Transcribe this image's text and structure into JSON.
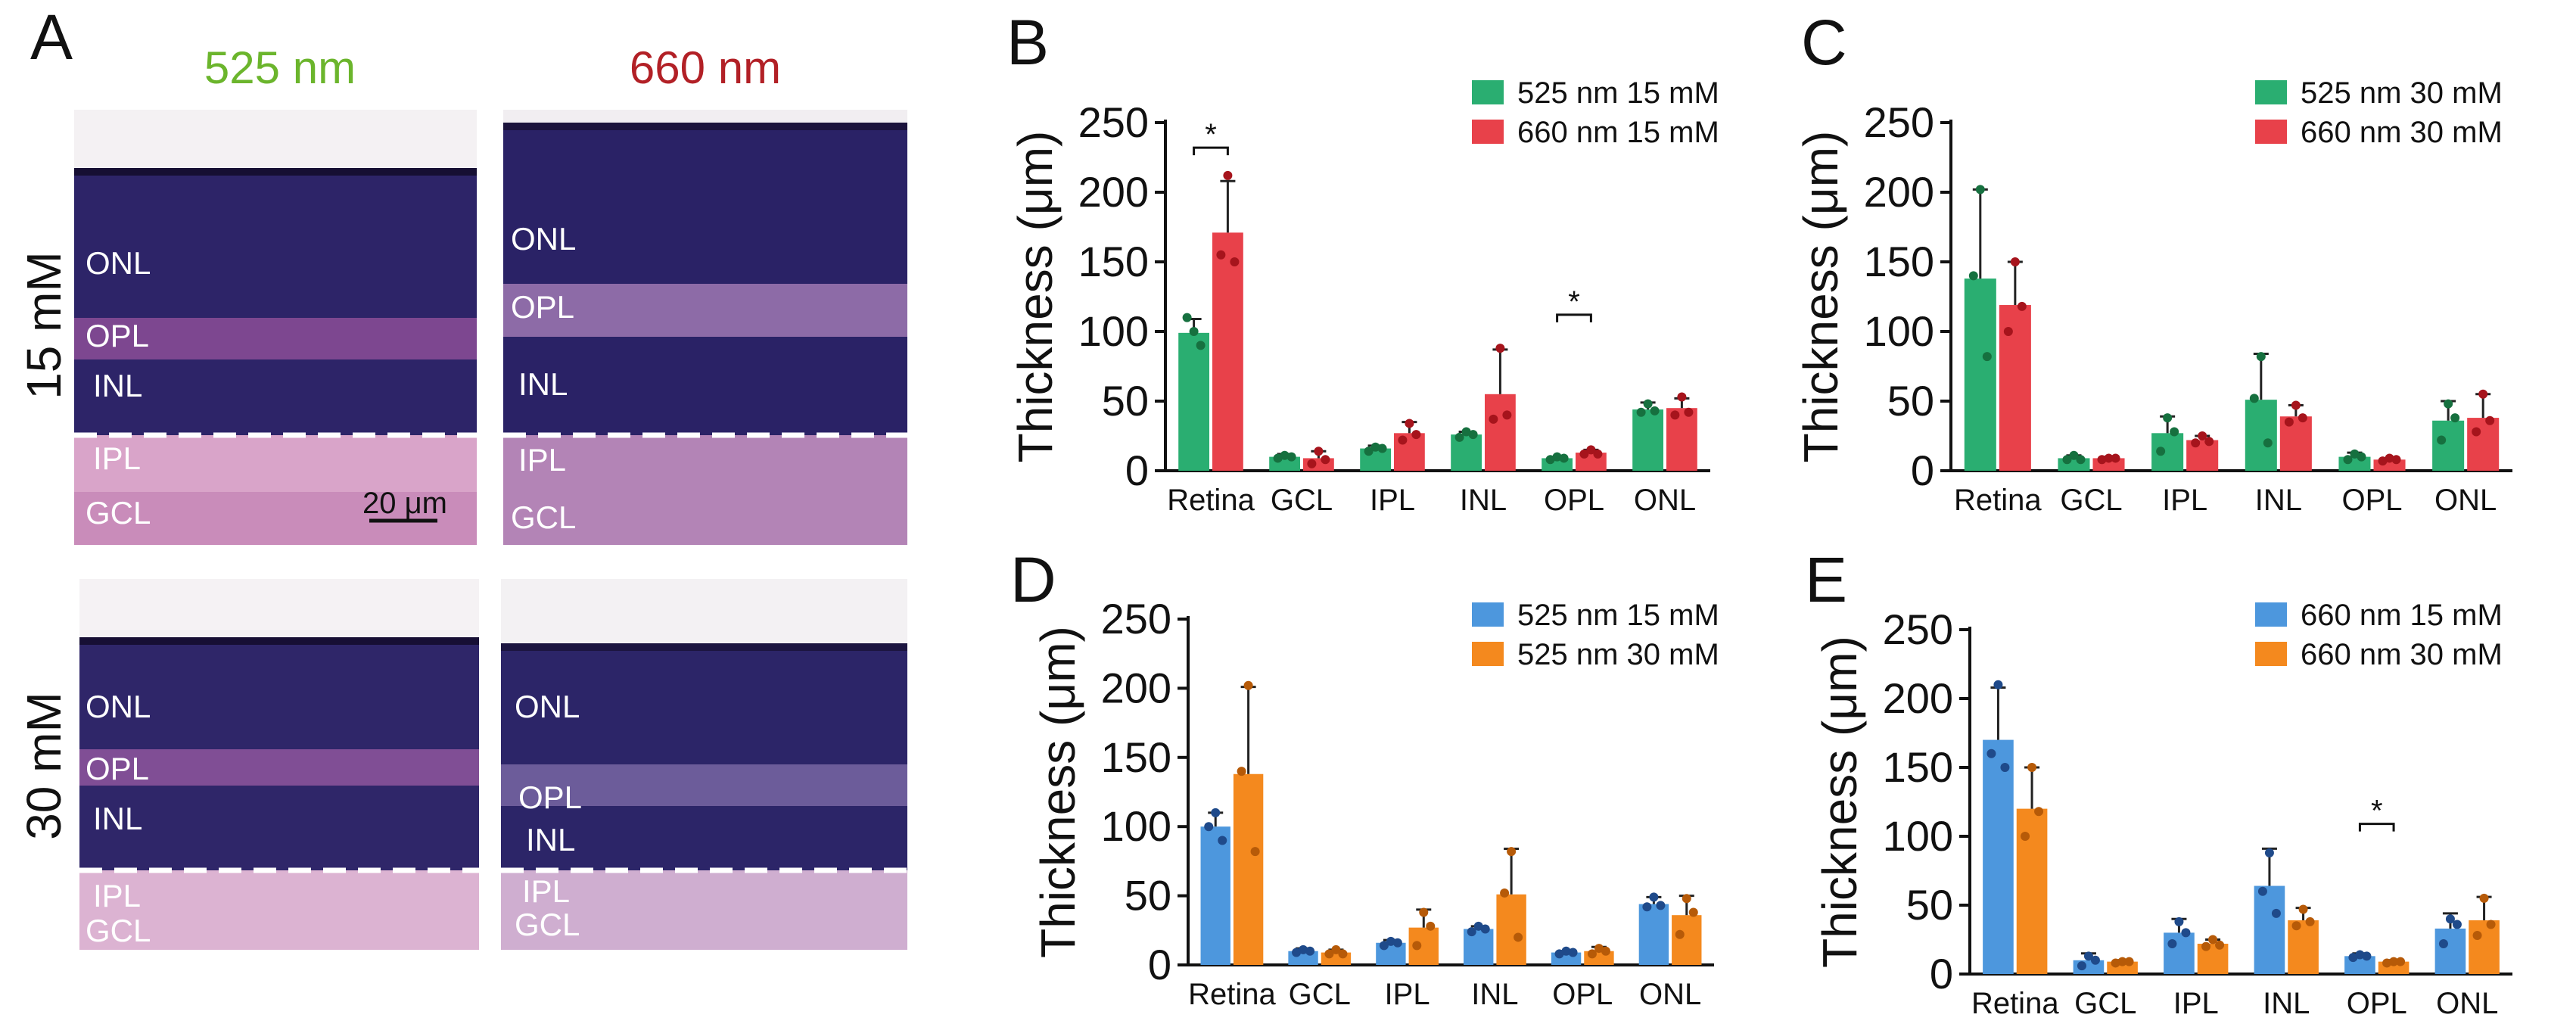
{
  "figure": {
    "panel_labels": [
      "A",
      "B",
      "C",
      "D",
      "E"
    ],
    "panel_a": {
      "col_labels": [
        "525 nm",
        "660 nm"
      ],
      "row_labels": [
        "15 mM",
        "30 mM"
      ],
      "layer_labels": [
        [
          "ONL",
          "OPL",
          "INL",
          "IPL",
          "GCL"
        ],
        [
          "ONL",
          "OPL",
          "INL",
          "IPL",
          "GCL"
        ],
        [
          "ONL",
          "OPL",
          "INL",
          "IPL",
          "GCL"
        ],
        [
          "ONL",
          "OPL",
          "INL",
          "IPL",
          "GCL"
        ]
      ],
      "scale_bar": "20 μm"
    }
  },
  "chart_data": [
    {
      "panel": "B",
      "type": "bar",
      "ylabel": "Thickness (μm)",
      "ylim": [
        0,
        250
      ],
      "yticks": [
        0,
        50,
        100,
        150,
        200,
        250
      ],
      "categories": [
        "Retina",
        "GCL",
        "IPL",
        "INL",
        "OPL",
        "ONL"
      ],
      "series": [
        {
          "name": "525 nm 15 mM",
          "color": "#2aae71",
          "dot": "#16703f",
          "values": [
            99,
            10,
            16,
            26,
            9,
            44
          ],
          "errors": [
            10,
            2,
            2,
            2,
            1,
            5
          ],
          "points": [
            [
              100,
              110,
              90
            ],
            [
              11,
              9,
              10
            ],
            [
              17,
              14,
              16
            ],
            [
              28,
              24,
              26
            ],
            [
              10,
              8,
              9
            ],
            [
              48,
              42,
              43
            ]
          ]
        },
        {
          "name": "660 nm 15 mM",
          "color": "#e8414a",
          "dot": "#a6141c",
          "values": [
            171,
            9,
            27,
            55,
            13,
            45
          ],
          "errors": [
            37,
            5,
            8,
            32,
            2,
            7
          ],
          "points": [
            [
              212,
              155,
              150
            ],
            [
              14,
              5,
              8
            ],
            [
              34,
              22,
              26
            ],
            [
              88,
              37,
              40
            ],
            [
              15,
              12,
              12
            ],
            [
              53,
              40,
              42
            ]
          ]
        }
      ],
      "annotations": [
        {
          "text": "*",
          "from": 0,
          "to": 0,
          "y": 232
        },
        {
          "text": "*",
          "from": 4,
          "to": 4,
          "y": 112
        }
      ],
      "legend": "top-right"
    },
    {
      "panel": "C",
      "type": "bar",
      "ylabel": "Thickness (μm)",
      "ylim": [
        0,
        250
      ],
      "yticks": [
        0,
        50,
        100,
        150,
        200,
        250
      ],
      "categories": [
        "Retina",
        "GCL",
        "IPL",
        "INL",
        "OPL",
        "ONL"
      ],
      "series": [
        {
          "name": "525 nm 30 mM",
          "color": "#2aae71",
          "dot": "#16703f",
          "values": [
            138,
            9,
            27,
            51,
            10,
            36
          ],
          "errors": [
            64,
            2,
            12,
            33,
            3,
            14
          ],
          "points": [
            [
              202,
              140,
              82
            ],
            [
              11,
              8,
              8
            ],
            [
              38,
              14,
              28
            ],
            [
              82,
              52,
              20
            ],
            [
              12,
              8,
              10
            ],
            [
              48,
              22,
              38
            ]
          ]
        },
        {
          "name": "660 nm 30 mM",
          "color": "#e8414a",
          "dot": "#a6141c",
          "values": [
            119,
            9,
            22,
            39,
            8,
            38
          ],
          "errors": [
            31,
            1,
            3,
            8,
            1,
            17
          ],
          "points": [
            [
              150,
              100,
              118
            ],
            [
              9,
              8,
              9
            ],
            [
              25,
              20,
              21
            ],
            [
              47,
              35,
              38
            ],
            [
              9,
              7,
              8
            ],
            [
              55,
              28,
              36
            ]
          ]
        }
      ],
      "annotations": [],
      "legend": "top-right"
    },
    {
      "panel": "D",
      "type": "bar",
      "ylabel": "Thickness (μm)",
      "ylim": [
        0,
        250
      ],
      "yticks": [
        0,
        50,
        100,
        150,
        200,
        250
      ],
      "categories": [
        "Retina",
        "GCL",
        "IPL",
        "INL",
        "OPL",
        "ONL"
      ],
      "series": [
        {
          "name": "525 nm 15 mM",
          "color": "#4d97dd",
          "dot": "#1f4a8a",
          "values": [
            100,
            10,
            16,
            26,
            9,
            44
          ],
          "errors": [
            10,
            2,
            2,
            2,
            1,
            5
          ],
          "points": [
            [
              110,
              100,
              90
            ],
            [
              11,
              9,
              10
            ],
            [
              17,
              14,
              16
            ],
            [
              28,
              24,
              26
            ],
            [
              10,
              8,
              9
            ],
            [
              49,
              42,
              43
            ]
          ]
        },
        {
          "name": "525 nm 30 mM",
          "color": "#f4891e",
          "dot": "#b65a08",
          "values": [
            138,
            9,
            27,
            51,
            10,
            36
          ],
          "errors": [
            63,
            2,
            13,
            33,
            3,
            14
          ],
          "points": [
            [
              202,
              140,
              82
            ],
            [
              11,
              8,
              8
            ],
            [
              38,
              14,
              28
            ],
            [
              82,
              52,
              20
            ],
            [
              12,
              8,
              10
            ],
            [
              48,
              22,
              38
            ]
          ]
        }
      ],
      "annotations": [],
      "legend": "top-right"
    },
    {
      "panel": "E",
      "type": "bar",
      "ylabel": "Thickness (μm)",
      "ylim": [
        0,
        250
      ],
      "yticks": [
        0,
        50,
        100,
        150,
        200,
        250
      ],
      "categories": [
        "Retina",
        "GCL",
        "IPL",
        "INL",
        "OPL",
        "ONL"
      ],
      "series": [
        {
          "name": "660 nm 15 mM",
          "color": "#4d97dd",
          "dot": "#1f4a8a",
          "values": [
            170,
            10,
            30,
            64,
            13,
            33
          ],
          "errors": [
            38,
            5,
            10,
            27,
            2,
            11
          ],
          "points": [
            [
              210,
              160,
              150
            ],
            [
              13,
              6,
              10
            ],
            [
              38,
              22,
              30
            ],
            [
              88,
              60,
              44
            ],
            [
              14,
              12,
              13
            ],
            [
              40,
              22,
              36
            ]
          ]
        },
        {
          "name": "660 nm 30 mM",
          "color": "#f4891e",
          "dot": "#b65a08",
          "values": [
            120,
            9,
            22,
            39,
            9,
            39
          ],
          "errors": [
            30,
            1,
            3,
            9,
            1,
            17
          ],
          "points": [
            [
              150,
              100,
              118
            ],
            [
              9,
              8,
              9
            ],
            [
              25,
              20,
              21
            ],
            [
              47,
              35,
              38
            ],
            [
              9,
              8,
              9
            ],
            [
              55,
              28,
              36
            ]
          ]
        }
      ],
      "annotations": [
        {
          "text": "*",
          "from": 4,
          "to": 4,
          "y": 109
        }
      ],
      "legend": "top-right"
    }
  ]
}
